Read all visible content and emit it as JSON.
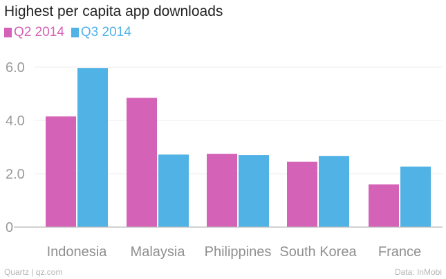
{
  "chart_data": {
    "type": "bar",
    "title": "Highest per capita app downloads",
    "categories": [
      "Indonesia",
      "Malaysia",
      "Philippines",
      "South Korea",
      "France"
    ],
    "series": [
      {
        "name": "Q2 2014",
        "color": "#d462b7",
        "values": [
          4.15,
          4.85,
          2.75,
          2.45,
          1.6
        ]
      },
      {
        "name": "Q3 2014",
        "color": "#51b2e5",
        "values": [
          5.97,
          2.72,
          2.7,
          2.67,
          2.27
        ]
      }
    ],
    "ylim": [
      0,
      6.2
    ],
    "yticks": [
      {
        "value": 0,
        "label": "0"
      },
      {
        "value": 2,
        "label": "2.0"
      },
      {
        "value": 4,
        "label": "4.0"
      },
      {
        "value": 6,
        "label": "6.0"
      }
    ],
    "grid": true,
    "legend": "top-left"
  },
  "footer": {
    "source_left": "Quartz | qz.com",
    "source_right": "Data: InMobi"
  }
}
